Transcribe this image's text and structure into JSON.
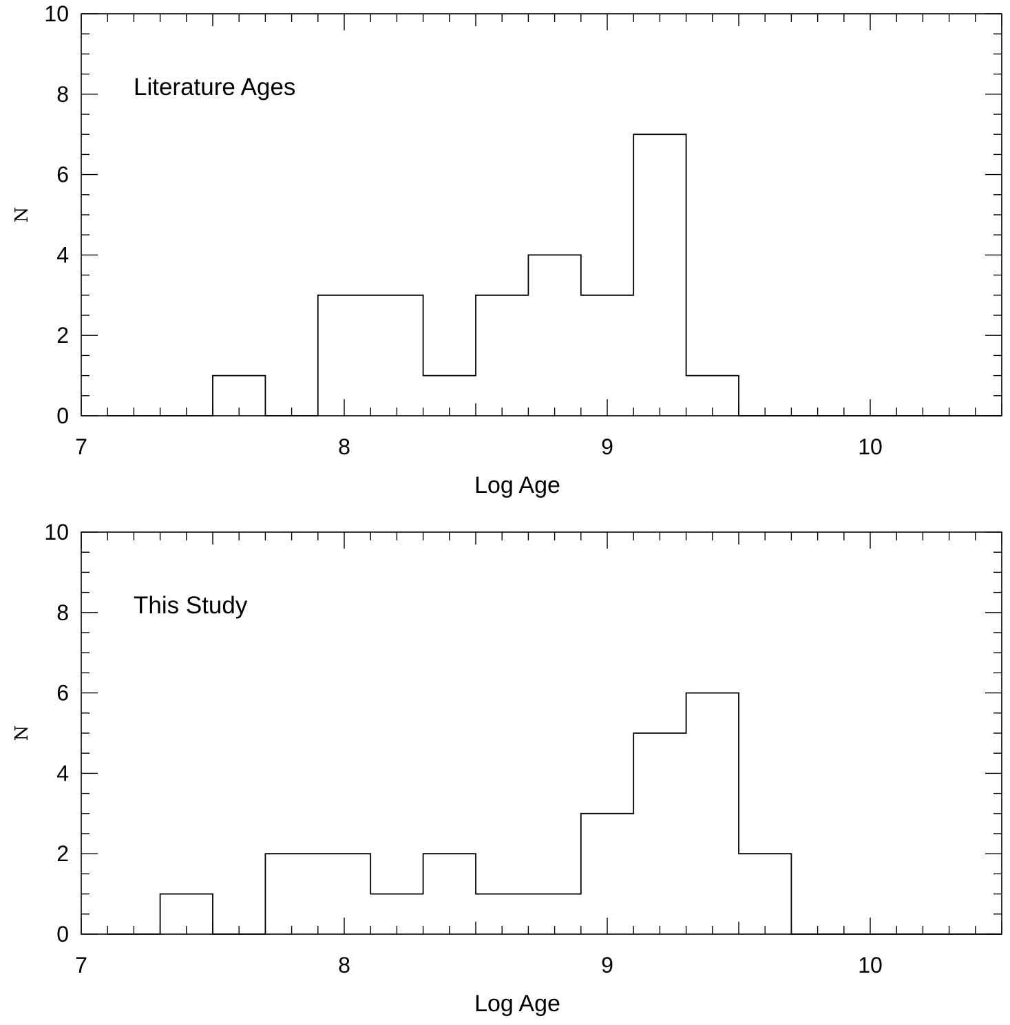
{
  "chart_data": [
    {
      "type": "histogram",
      "annotation": "Literature Ages",
      "xlabel": "Log Age",
      "ylabel": "N",
      "xlim": [
        7,
        10.5
      ],
      "ylim": [
        0,
        10
      ],
      "xticks": [
        7,
        8,
        9,
        10
      ],
      "xtick_labels": [
        "7",
        "8",
        "9",
        "10"
      ],
      "yticks": [
        0,
        2,
        4,
        6,
        8,
        10
      ],
      "ytick_labels": [
        "0",
        "2",
        "4",
        "6",
        "8",
        "10"
      ],
      "bin_edges": [
        7.1,
        7.3,
        7.5,
        7.7,
        7.9,
        8.1,
        8.3,
        8.5,
        8.7,
        8.9,
        9.1,
        9.3,
        9.5,
        9.7,
        9.9,
        10.1,
        10.3,
        10.5
      ],
      "counts": [
        0,
        0,
        1,
        0,
        3,
        3,
        1,
        3,
        4,
        3,
        7,
        1,
        0,
        0,
        0,
        0,
        0
      ]
    },
    {
      "type": "histogram",
      "annotation": "This Study",
      "xlabel": "Log Age",
      "ylabel": "N",
      "xlim": [
        7,
        10.5
      ],
      "ylim": [
        0,
        10
      ],
      "xticks": [
        7,
        8,
        9,
        10
      ],
      "xtick_labels": [
        "7",
        "8",
        "9",
        "10"
      ],
      "yticks": [
        0,
        2,
        4,
        6,
        8,
        10
      ],
      "ytick_labels": [
        "0",
        "2",
        "4",
        "6",
        "8",
        "10"
      ],
      "bin_edges": [
        7.1,
        7.3,
        7.5,
        7.7,
        7.9,
        8.1,
        8.3,
        8.5,
        8.7,
        8.9,
        9.1,
        9.3,
        9.5,
        9.7,
        9.9,
        10.1,
        10.3,
        10.5
      ],
      "counts": [
        0,
        1,
        0,
        2,
        2,
        1,
        2,
        1,
        1,
        3,
        5,
        6,
        2,
        0,
        0,
        0,
        0
      ]
    }
  ]
}
